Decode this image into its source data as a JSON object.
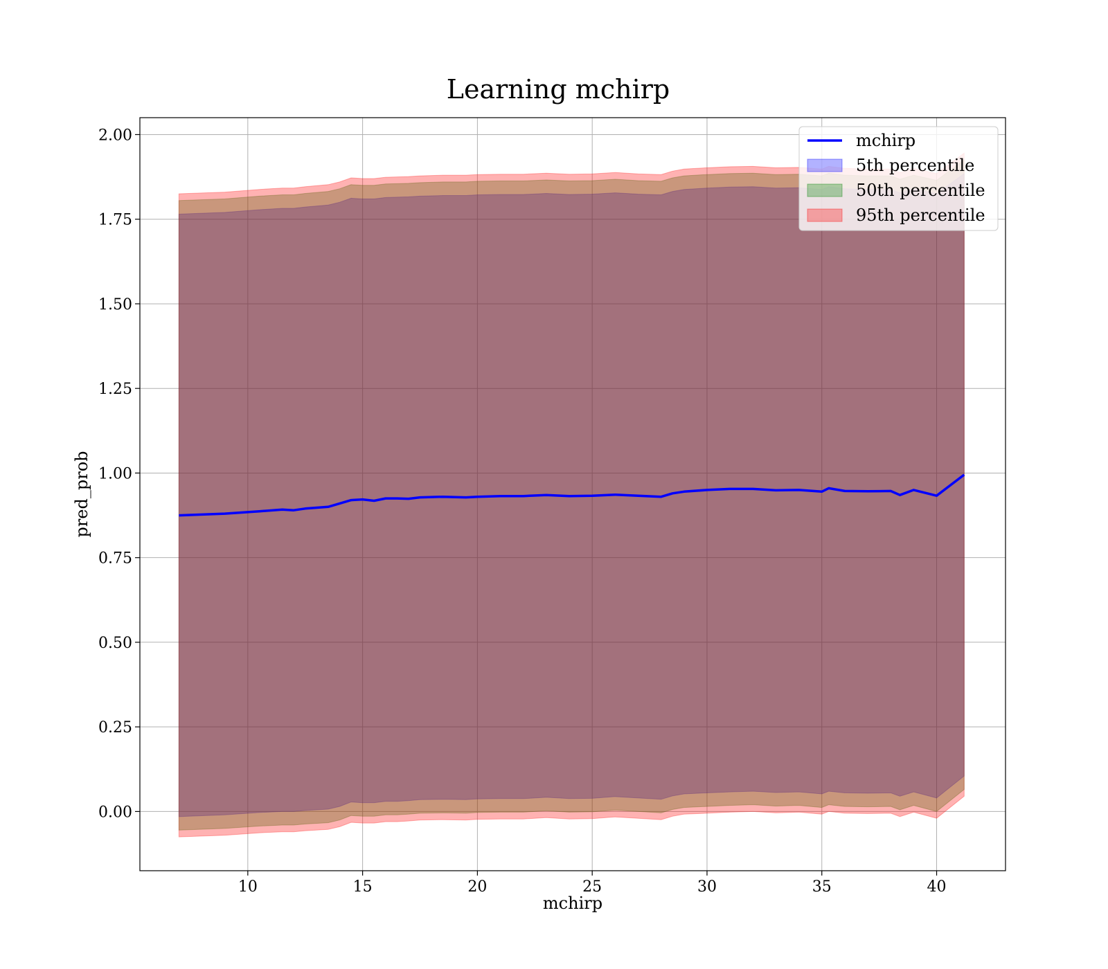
{
  "chart_data": {
    "type": "line",
    "title": "Learning mchirp",
    "xlabel": "mchirp",
    "ylabel": "pred_prob",
    "xlim": [
      5.3,
      43.0
    ],
    "ylim": [
      -0.175,
      2.05
    ],
    "xticks": [
      10,
      15,
      20,
      25,
      30,
      35,
      40
    ],
    "yticks": [
      0.0,
      0.25,
      0.5,
      0.75,
      1.0,
      1.25,
      1.5,
      1.75,
      2.0
    ],
    "xtick_labels": [
      "10",
      "15",
      "20",
      "25",
      "30",
      "35",
      "40"
    ],
    "ytick_labels": [
      "0.00",
      "0.25",
      "0.50",
      "0.75",
      "1.00",
      "1.25",
      "1.50",
      "1.75",
      "2.00"
    ],
    "grid": true,
    "legend_position": "top-right",
    "x": [
      7.0,
      9.0,
      10.5,
      11.5,
      12.0,
      12.5,
      13.5,
      14.0,
      14.5,
      15.0,
      15.5,
      16.0,
      16.5,
      17.0,
      17.5,
      18.5,
      19.5,
      20.0,
      21.0,
      22.0,
      23.0,
      24.0,
      25.0,
      26.0,
      27.0,
      28.0,
      28.5,
      29.0,
      30.0,
      31.0,
      32.0,
      33.0,
      34.0,
      35.0,
      35.3,
      36.0,
      37.0,
      38.0,
      38.4,
      39.0,
      40.0,
      41.2
    ],
    "series": [
      {
        "name": "mchirp",
        "kind": "line",
        "color": "#0000ff",
        "values": [
          0.875,
          0.88,
          0.887,
          0.892,
          0.89,
          0.895,
          0.9,
          0.91,
          0.92,
          0.922,
          0.918,
          0.925,
          0.925,
          0.924,
          0.928,
          0.93,
          0.928,
          0.93,
          0.932,
          0.932,
          0.935,
          0.932,
          0.933,
          0.936,
          0.933,
          0.93,
          0.94,
          0.945,
          0.95,
          0.953,
          0.953,
          0.949,
          0.95,
          0.945,
          0.955,
          0.947,
          0.946,
          0.947,
          0.935,
          0.95,
          0.933,
          0.995
        ]
      },
      {
        "name": "5th percentile",
        "kind": "band",
        "color": "#0000ff",
        "alpha": 0.3,
        "lower": [
          -0.015,
          -0.01,
          -0.003,
          0.0,
          0.0,
          0.003,
          0.007,
          0.015,
          0.028,
          0.026,
          0.026,
          0.03,
          0.03,
          0.032,
          0.035,
          0.036,
          0.035,
          0.037,
          0.038,
          0.038,
          0.042,
          0.038,
          0.039,
          0.044,
          0.04,
          0.036,
          0.046,
          0.052,
          0.055,
          0.058,
          0.06,
          0.056,
          0.058,
          0.052,
          0.06,
          0.055,
          0.054,
          0.055,
          0.045,
          0.058,
          0.04,
          0.105
        ],
        "upper": [
          1.765,
          1.77,
          1.778,
          1.782,
          1.782,
          1.786,
          1.792,
          1.8,
          1.812,
          1.81,
          1.81,
          1.814,
          1.815,
          1.816,
          1.818,
          1.82,
          1.82,
          1.822,
          1.823,
          1.823,
          1.826,
          1.823,
          1.824,
          1.828,
          1.824,
          1.822,
          1.832,
          1.838,
          1.842,
          1.845,
          1.846,
          1.842,
          1.843,
          1.838,
          1.846,
          1.84,
          1.838,
          1.838,
          1.828,
          1.84,
          1.825,
          1.885
        ]
      },
      {
        "name": "50th percentile",
        "kind": "band",
        "color": "#008000",
        "alpha": 0.3,
        "lower": [
          -0.055,
          -0.05,
          -0.043,
          -0.04,
          -0.04,
          -0.037,
          -0.033,
          -0.025,
          -0.012,
          -0.014,
          -0.014,
          -0.01,
          -0.01,
          -0.008,
          -0.005,
          -0.004,
          -0.005,
          -0.003,
          -0.002,
          -0.002,
          0.002,
          -0.002,
          -0.001,
          0.004,
          0.0,
          -0.004,
          0.006,
          0.012,
          0.015,
          0.018,
          0.02,
          0.016,
          0.018,
          0.012,
          0.02,
          0.015,
          0.014,
          0.015,
          0.005,
          0.018,
          0.0,
          0.065
        ],
        "upper": [
          1.805,
          1.81,
          1.818,
          1.822,
          1.822,
          1.826,
          1.832,
          1.84,
          1.852,
          1.85,
          1.85,
          1.854,
          1.855,
          1.856,
          1.858,
          1.86,
          1.86,
          1.862,
          1.863,
          1.863,
          1.866,
          1.863,
          1.864,
          1.868,
          1.864,
          1.862,
          1.872,
          1.878,
          1.882,
          1.885,
          1.886,
          1.882,
          1.883,
          1.878,
          1.886,
          1.88,
          1.878,
          1.878,
          1.868,
          1.88,
          1.865,
          1.925
        ]
      },
      {
        "name": "95th percentile",
        "kind": "band",
        "color": "#ff0000",
        "alpha": 0.3,
        "lower": [
          -0.075,
          -0.07,
          -0.063,
          -0.06,
          -0.06,
          -0.057,
          -0.053,
          -0.045,
          -0.032,
          -0.034,
          -0.034,
          -0.03,
          -0.03,
          -0.028,
          -0.025,
          -0.024,
          -0.025,
          -0.023,
          -0.022,
          -0.022,
          -0.018,
          -0.022,
          -0.021,
          -0.016,
          -0.02,
          -0.024,
          -0.014,
          -0.008,
          -0.005,
          -0.002,
          0.0,
          -0.004,
          -0.002,
          -0.008,
          0.0,
          -0.005,
          -0.006,
          -0.005,
          -0.015,
          -0.002,
          -0.02,
          0.045
        ],
        "upper": [
          1.825,
          1.83,
          1.838,
          1.842,
          1.842,
          1.846,
          1.852,
          1.86,
          1.872,
          1.87,
          1.87,
          1.874,
          1.875,
          1.876,
          1.878,
          1.88,
          1.88,
          1.882,
          1.883,
          1.883,
          1.886,
          1.883,
          1.884,
          1.888,
          1.884,
          1.882,
          1.892,
          1.898,
          1.902,
          1.905,
          1.906,
          1.902,
          1.903,
          1.898,
          1.906,
          1.9,
          1.898,
          1.898,
          1.888,
          1.9,
          1.885,
          1.945
        ]
      }
    ]
  }
}
